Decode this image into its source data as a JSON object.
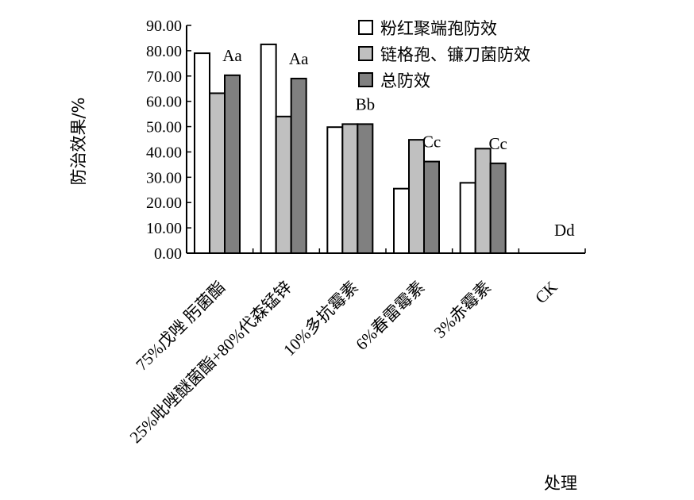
{
  "chart_data": {
    "type": "bar",
    "title": "",
    "xlabel": "处理",
    "ylabel": "防治效果/%",
    "ylim": [
      0,
      90
    ],
    "yticks": [
      "0.00",
      "10.00",
      "20.00",
      "30.00",
      "40.00",
      "50.00",
      "60.00",
      "70.00",
      "80.00",
      "90.00"
    ],
    "categories": [
      "75%戊唑 肟菌酯",
      "25%吡唑醚菌酯+80%代森锰锌",
      "10%多抗霉素",
      "6%春雷霉素",
      "3%赤霉素",
      "CK"
    ],
    "series": [
      {
        "name": "粉红聚端孢防效",
        "color": "#ffffff",
        "values": [
          79.0,
          82.5,
          49.8,
          25.5,
          27.8,
          0
        ]
      },
      {
        "name": "链格孢、镰刀菌防效",
        "color": "#c0c0c0",
        "values": [
          63.2,
          54.0,
          51.0,
          44.8,
          41.3,
          0
        ]
      },
      {
        "name": "总防效",
        "color": "#808080",
        "values": [
          70.3,
          69.0,
          51.0,
          36.2,
          35.5,
          0
        ]
      }
    ],
    "significance": [
      "Aa",
      "Aa",
      "Bb",
      "Cc",
      "Cc",
      "Dd"
    ],
    "legend_position": "top-right",
    "grid": false
  }
}
